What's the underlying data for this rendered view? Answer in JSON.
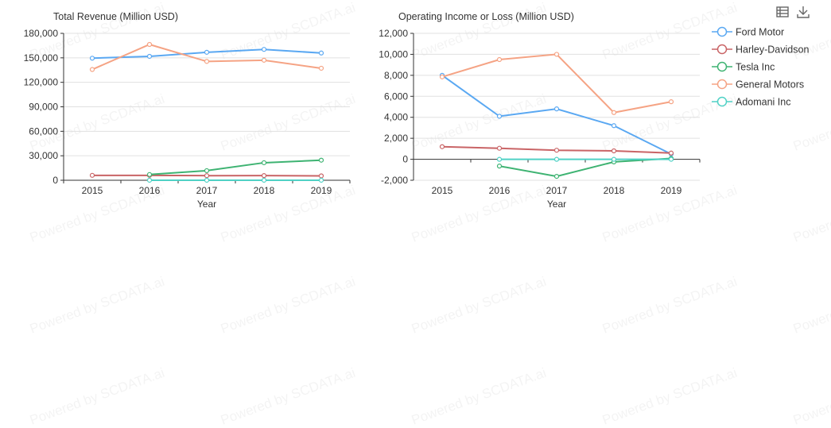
{
  "toolbox": {
    "data_view_icon": "table-list-icon",
    "save_icon": "download-icon"
  },
  "watermark": "Powered by SCDATA.ai",
  "legend": [
    {
      "name": "Ford Motor",
      "color": "#5aa8f2"
    },
    {
      "name": "Harley-Davidson",
      "color": "#c96466"
    },
    {
      "name": "Tesla Inc",
      "color": "#3eb372"
    },
    {
      "name": "General Motors",
      "color": "#f5a384"
    },
    {
      "name": "Adomani Inc",
      "color": "#4fd1c5"
    }
  ],
  "chart_data": [
    {
      "type": "line",
      "title": "Total Revenue (Million USD)",
      "xlabel": "Year",
      "ylabel": "",
      "categories": [
        "2015",
        "2016",
        "2017",
        "2018",
        "2019"
      ],
      "ylim": [
        0,
        180000
      ],
      "yticks": [
        0,
        30000,
        60000,
        90000,
        120000,
        150000,
        180000
      ],
      "ytick_labels": [
        "0",
        "30,000",
        "60,000",
        "90,000",
        "120,000",
        "150,000",
        "180,000"
      ],
      "grid": true,
      "series": [
        {
          "name": "Ford Motor",
          "values": [
            149558,
            151800,
            156776,
            160338,
            155900
          ]
        },
        {
          "name": "Harley-Davidson",
          "values": [
            6000,
            6000,
            5650,
            5700,
            5360
          ]
        },
        {
          "name": "Tesla Inc",
          "values": [
            null,
            7000,
            11759,
            21461,
            24578
          ]
        },
        {
          "name": "General Motors",
          "values": [
            135700,
            166380,
            145588,
            147049,
            137237
          ]
        },
        {
          "name": "Adomani Inc",
          "values": [
            null,
            5,
            5,
            5,
            12
          ]
        }
      ]
    },
    {
      "type": "line",
      "title": "Operating Income or Loss (Million USD)",
      "xlabel": "Year",
      "ylabel": "",
      "categories": [
        "2015",
        "2016",
        "2017",
        "2018",
        "2019"
      ],
      "ylim": [
        -2000,
        12000
      ],
      "yticks": [
        -2000,
        0,
        2000,
        4000,
        6000,
        8000,
        10000,
        12000
      ],
      "ytick_labels": [
        "-2,000",
        "0",
        "2,000",
        "4,000",
        "6,000",
        "8,000",
        "10,000",
        "12,000"
      ],
      "grid": true,
      "series": [
        {
          "name": "Ford Motor",
          "values": [
            8000,
            4100,
            4800,
            3200,
            500
          ]
        },
        {
          "name": "Harley-Davidson",
          "values": [
            1200,
            1050,
            860,
            800,
            590
          ]
        },
        {
          "name": "Tesla Inc",
          "values": [
            null,
            -650,
            -1630,
            -250,
            80
          ]
        },
        {
          "name": "General Motors",
          "values": [
            7850,
            9500,
            10000,
            4450,
            5480
          ]
        },
        {
          "name": "Adomani Inc",
          "values": [
            null,
            -5,
            -5,
            -5,
            -3
          ]
        }
      ]
    }
  ]
}
